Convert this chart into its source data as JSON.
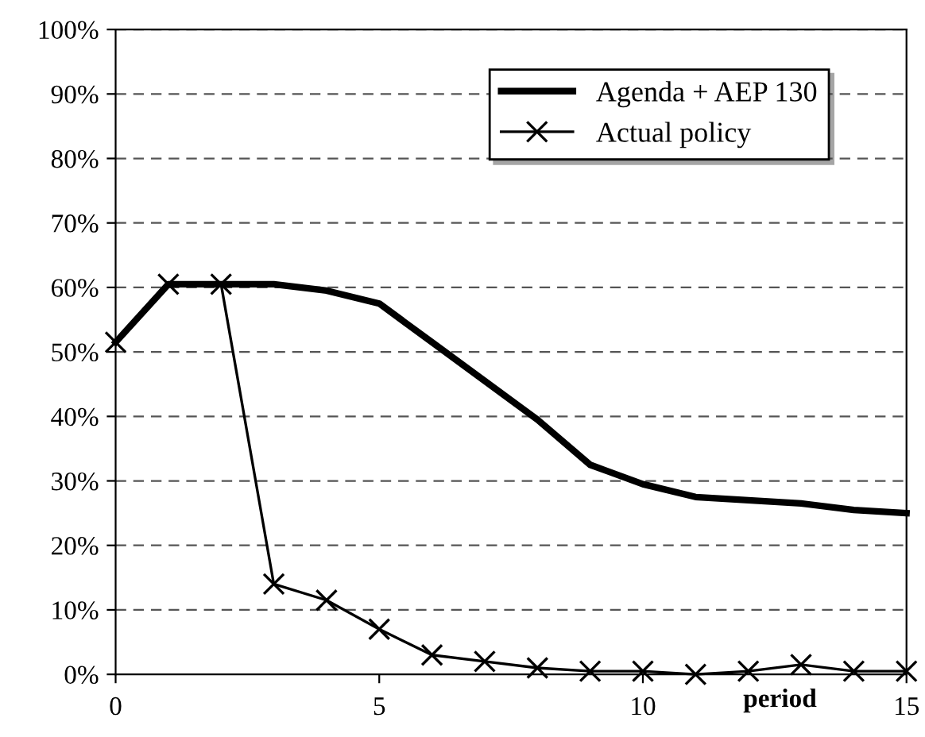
{
  "chart_data": {
    "type": "line",
    "xlabel": "period",
    "x": [
      0,
      1,
      2,
      3,
      4,
      5,
      6,
      7,
      8,
      9,
      10,
      11,
      12,
      13,
      14,
      15
    ],
    "series": [
      {
        "name": "Agenda + AEP 130",
        "color": "#000000",
        "marker": "none",
        "line_style": "solid",
        "values": [
          51.5,
          60.5,
          60.5,
          60.5,
          59.5,
          57.5,
          51.5,
          45.5,
          39.5,
          32.5,
          29.5,
          27.5,
          27,
          26.5,
          25.5,
          25
        ]
      },
      {
        "name": "Actual policy",
        "color": "#000000",
        "marker": "cross",
        "line_style": "solid",
        "values": [
          51.5,
          60.5,
          60.5,
          14,
          11.5,
          7,
          3,
          2,
          1,
          0.5,
          0.5,
          0,
          0.5,
          1.5,
          0.5,
          0.5
        ]
      }
    ],
    "xlim": [
      0,
      15
    ],
    "xticks": [
      0,
      5,
      10,
      15
    ],
    "ylim": [
      0,
      100
    ],
    "yticks": [
      {
        "value": 0,
        "label": "0%"
      },
      {
        "value": 10,
        "label": "10%"
      },
      {
        "value": 20,
        "label": "20%"
      },
      {
        "value": 30,
        "label": "30%"
      },
      {
        "value": 40,
        "label": "40%"
      },
      {
        "value": 50,
        "label": "50%"
      },
      {
        "value": 60,
        "label": "60%"
      },
      {
        "value": 70,
        "label": "70%"
      },
      {
        "value": 80,
        "label": "80%"
      },
      {
        "value": 90,
        "label": "90%"
      },
      {
        "value": 100,
        "label": "100%"
      }
    ],
    "grid": "y",
    "legend": "top right"
  }
}
